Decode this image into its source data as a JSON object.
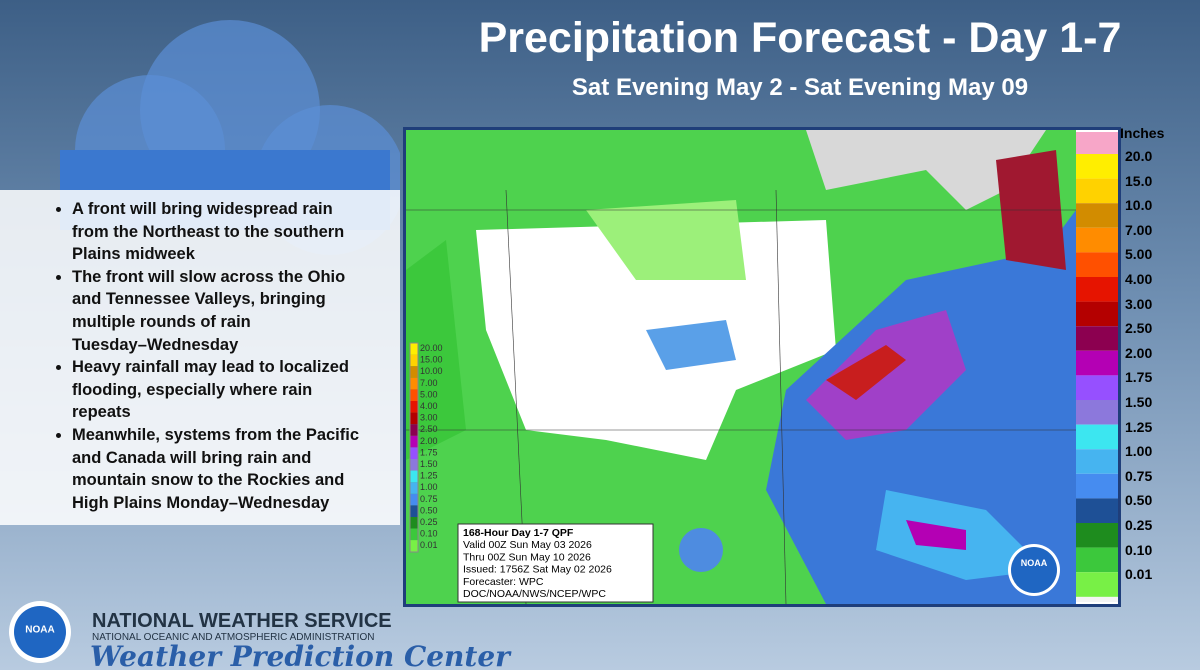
{
  "header": {
    "title": "Precipitation Forecast - Day 1-7",
    "subtitle": "Sat Evening May 2 - Sat Evening May 09"
  },
  "bullets": [
    [
      "A front will bring widespread rain",
      "from the Northeast to the southern",
      "Plains midweek"
    ],
    [
      "The front will slow across the Ohio",
      "and Tennessee Valleys, bringing",
      "multiple rounds of rain",
      "Tuesday–Wednesday"
    ],
    [
      "Heavy rainfall may lead to localized",
      "flooding, especially where rain",
      "repeats"
    ],
    [
      "Meanwhile, systems from the Pacific",
      "and Canada will bring rain and",
      "mountain snow to the Rockies and",
      "High Plains Monday–Wednesday"
    ]
  ],
  "legend": {
    "title": "Inches",
    "entries": [
      {
        "label": "20.0",
        "color": "#ffee00"
      },
      {
        "label": "15.0",
        "color": "#ffd200"
      },
      {
        "label": "10.0",
        "color": "#d28c00"
      },
      {
        "label": "7.00",
        "color": "#ff8c00"
      },
      {
        "label": "5.00",
        "color": "#ff5000"
      },
      {
        "label": "4.00",
        "color": "#e61400"
      },
      {
        "label": "3.00",
        "color": "#b40000"
      },
      {
        "label": "2.50",
        "color": "#8c0050"
      },
      {
        "label": "2.00",
        "color": "#b400b4"
      },
      {
        "label": "1.75",
        "color": "#9650ff"
      },
      {
        "label": "1.50",
        "color": "#8c78dc"
      },
      {
        "label": "1.25",
        "color": "#3ce6f0"
      },
      {
        "label": "1.00",
        "color": "#46b4f0"
      },
      {
        "label": "0.75",
        "color": "#468cf0"
      },
      {
        "label": "0.50",
        "color": "#1e5096"
      },
      {
        "label": "0.25",
        "color": "#1e8c1e"
      },
      {
        "label": "0.10",
        "color": "#3cc83c"
      },
      {
        "label": "0.01",
        "color": "#78f046"
      }
    ]
  },
  "inset_legend": [
    "20.00",
    "15.00",
    "10.00",
    "7.00",
    "5.00",
    "4.00",
    "3.00",
    "2.50",
    "2.00",
    "1.75",
    "1.50",
    "1.25",
    "1.00",
    "0.75",
    "0.50",
    "0.25",
    "0.10",
    "0.01"
  ],
  "info_box": [
    "168-Hour Day 1-7 QPF",
    "Valid 00Z Sun May 03 2026",
    "Thru 00Z Sun May 10 2026",
    "Issued: 1756Z Sat May 02 2026",
    "Forecaster: WPC",
    "DOC/NOAA/NWS/NCEP/WPC"
  ],
  "logo_text": "NOAA",
  "footer": {
    "agency": "NATIONAL WEATHER SERVICE",
    "parent": "NATIONAL OCEANIC AND ATMOSPHERIC ADMINISTRATION",
    "center": "Weather Prediction Center"
  }
}
